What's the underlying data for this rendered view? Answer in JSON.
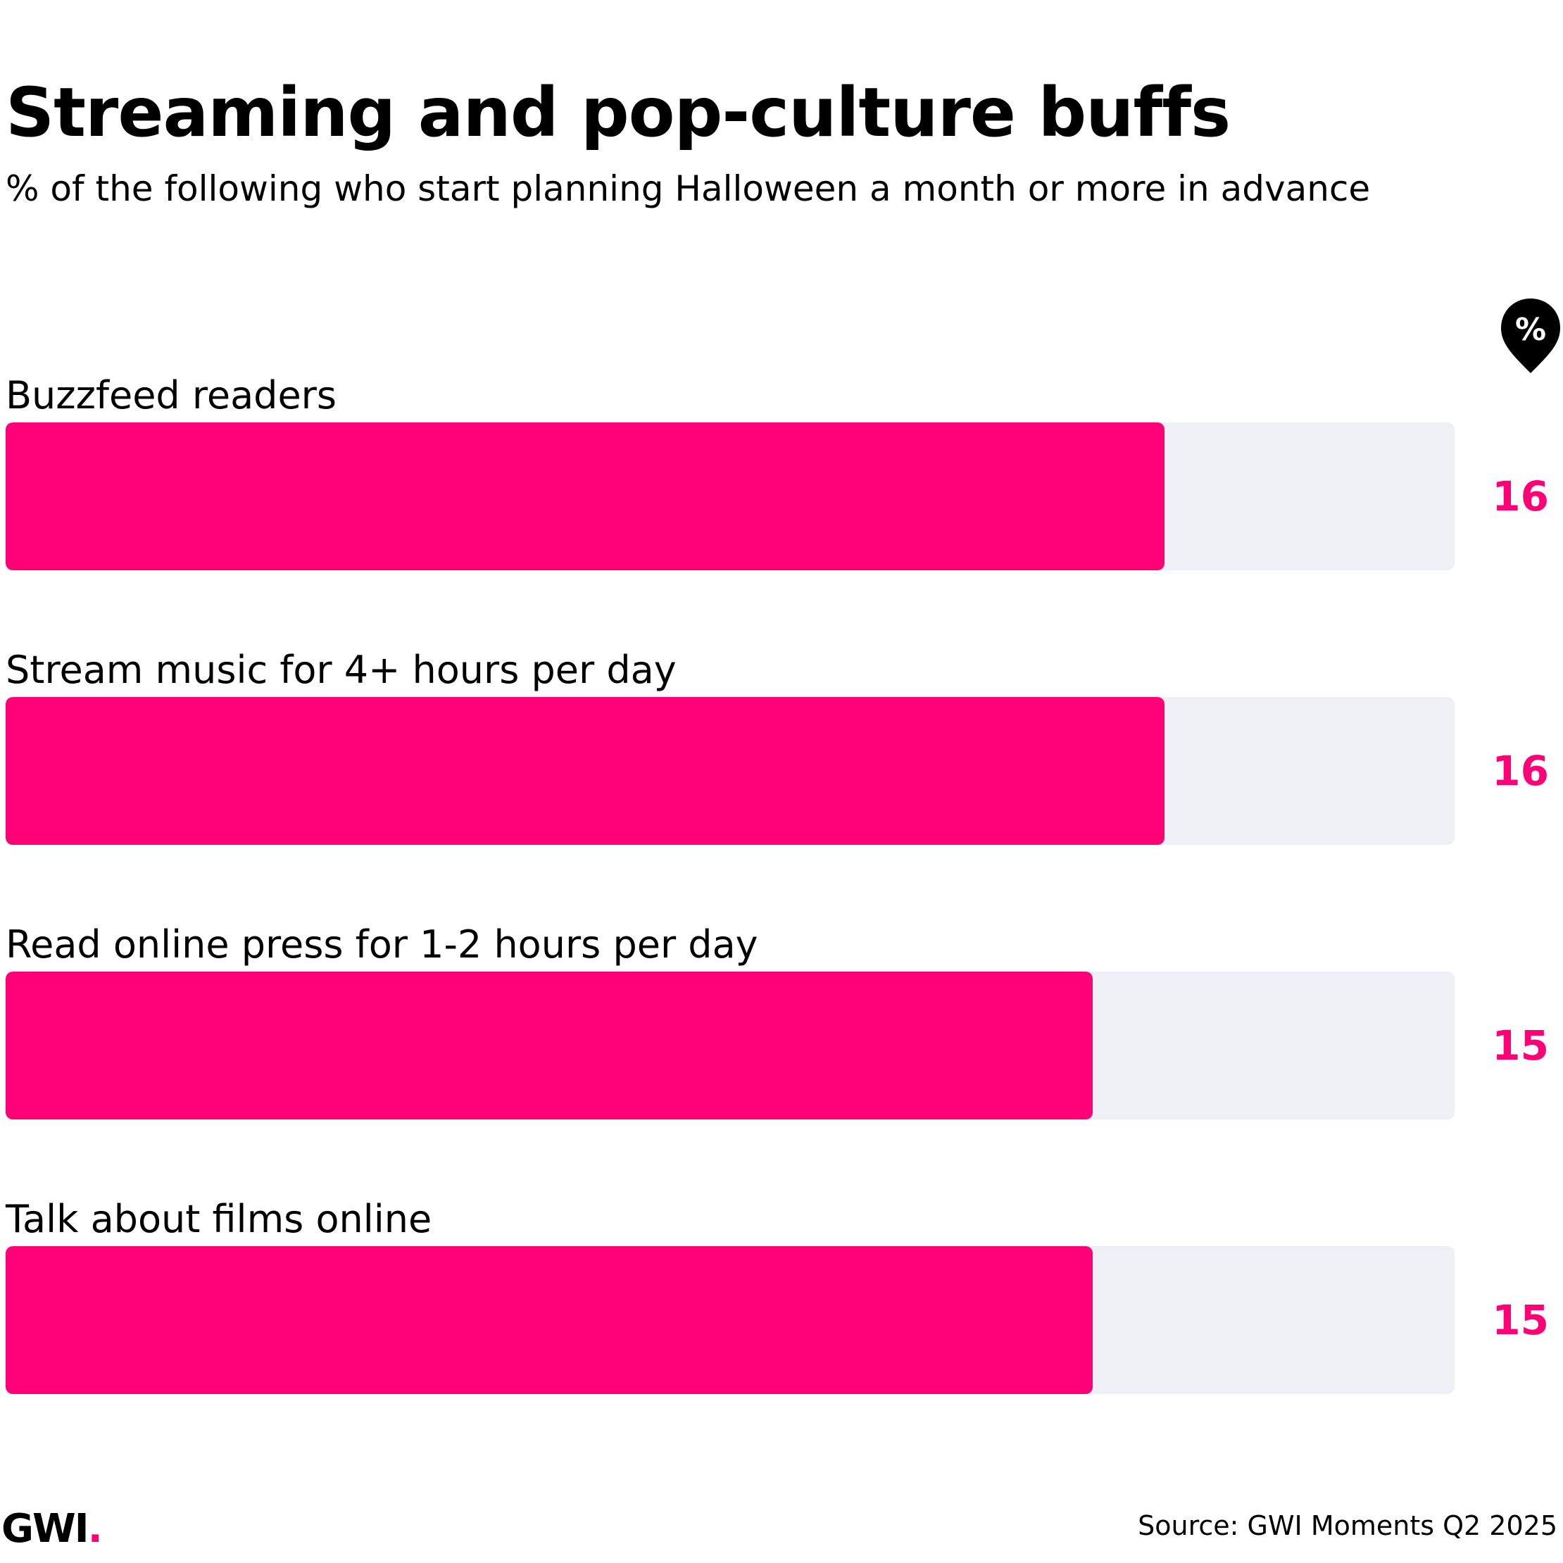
{
  "title": "Streaming and pop-culture buffs",
  "subtitle": "% of the following who start planning Halloween a month or more in advance",
  "unit_badge": "%",
  "colors": {
    "bar": "#ff0077",
    "track": "#eef0f5",
    "value_text": "#ff0077",
    "badge": "#000000"
  },
  "chart_data": {
    "type": "bar",
    "orientation": "horizontal",
    "title": "Streaming and pop-culture buffs",
    "subtitle": "% of the following who start planning Halloween a month or more in advance",
    "categories": [
      "Buzzfeed readers",
      "Stream music for 4+ hours per day",
      "Read online press for 1-2 hours per day",
      "Talk about films online"
    ],
    "values": [
      16,
      16,
      15,
      15
    ],
    "unit": "%",
    "xlim": [
      0,
      20
    ],
    "grid": false
  },
  "logo": {
    "text": "GWI",
    "dot": "."
  },
  "source": "Source: GWI Moments Q2 2025"
}
